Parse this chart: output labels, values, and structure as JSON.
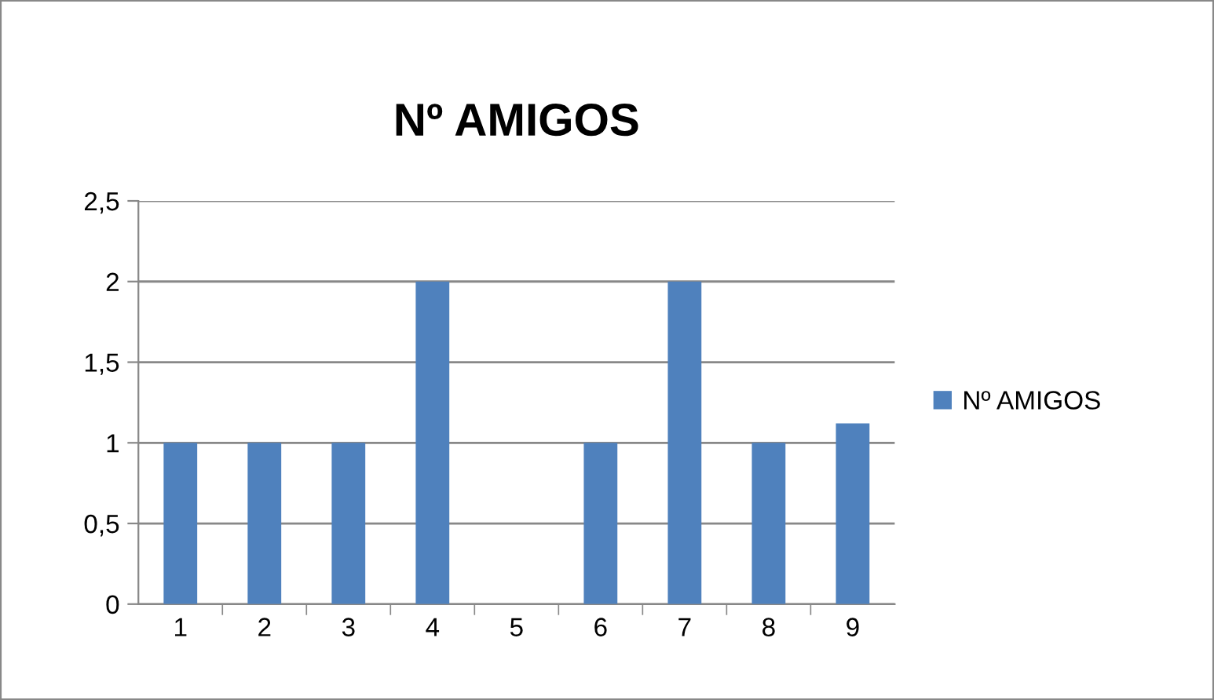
{
  "chart_data": {
    "type": "bar",
    "title": "Nº AMIGOS",
    "categories": [
      "1",
      "2",
      "3",
      "4",
      "5",
      "6",
      "7",
      "8",
      "9"
    ],
    "series": [
      {
        "name": "Nº AMIGOS",
        "color": "#4f81bd",
        "values": [
          1,
          1,
          1,
          2,
          0,
          1,
          2,
          1,
          1.12
        ]
      }
    ],
    "ylim": [
      0,
      2.5
    ],
    "yticks": [
      0,
      {
        "value": 0.5,
        "label": "0,5"
      },
      1,
      {
        "value": 1.5,
        "label": "1,5"
      },
      2,
      {
        "value": 2.5,
        "label": "2,5"
      }
    ],
    "grid": "y",
    "legend": "right"
  }
}
